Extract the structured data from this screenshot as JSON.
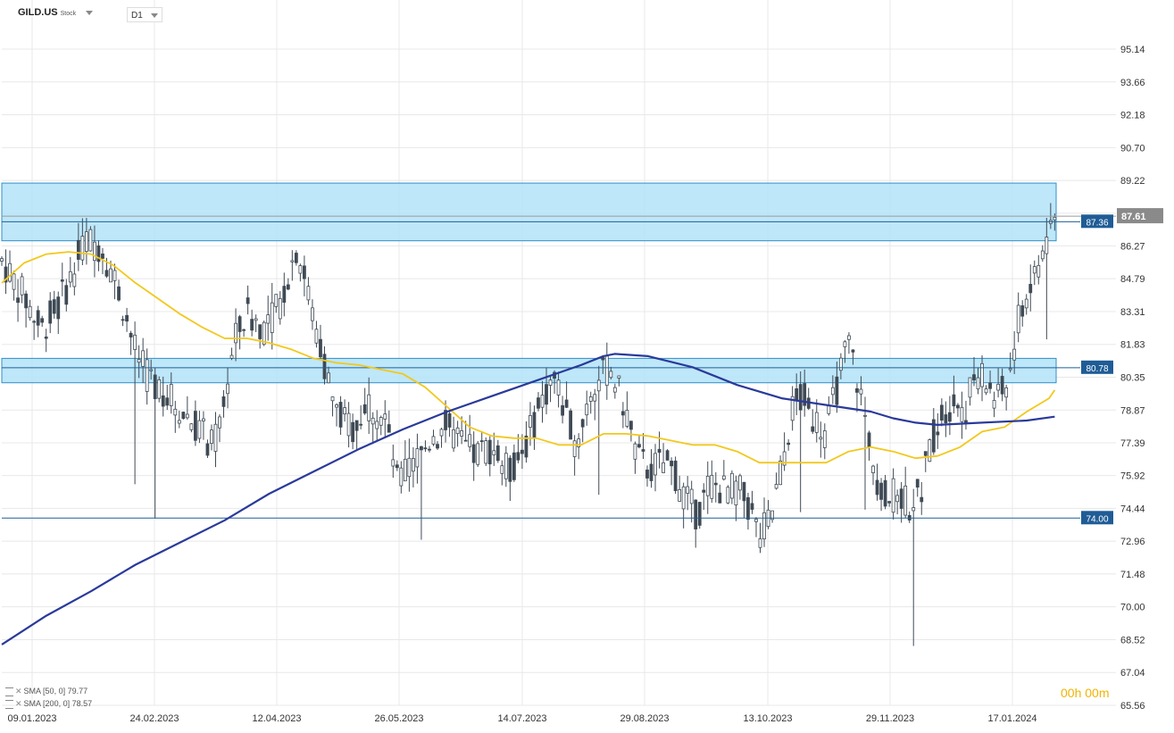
{
  "header": {
    "symbol": "GILD.US",
    "symbol_type": "Stock",
    "timeframe": "D1"
  },
  "legend": [
    {
      "label": "SMA [50, 0] 79.77"
    },
    {
      "label": "SMA [200, 0] 78.57"
    }
  ],
  "timer": "00h 00m",
  "colors": {
    "zone_fill": "#b3e3f8",
    "zone_border": "#2f8fc8",
    "line_blue": "#1e5f97",
    "sma50": "#f2c81c",
    "sma200": "#2a3a9a",
    "candle": "#3f4a55",
    "label_bg": "#1f5c96",
    "price_label_bg": "#8a8a8a"
  },
  "chart_data": {
    "type": "candlestick",
    "y_ticks": [
      "95.14",
      "93.66",
      "92.18",
      "90.70",
      "89.22",
      "87.74",
      "86.27",
      "84.79",
      "83.31",
      "81.83",
      "80.35",
      "78.87",
      "77.39",
      "75.92",
      "74.44",
      "72.96",
      "71.48",
      "70.00",
      "68.52",
      "67.04",
      "65.56"
    ],
    "x_ticks": [
      "09.01.2023",
      "24.02.2023",
      "12.04.2023",
      "26.05.2023",
      "14.07.2023",
      "29.08.2023",
      "13.10.2023",
      "29.11.2023",
      "17.01.2024"
    ],
    "ylim": [
      65.56,
      95.14
    ],
    "zones": [
      {
        "from": 86.5,
        "to": 89.1
      },
      {
        "from": 80.1,
        "to": 81.2
      }
    ],
    "lines": [
      {
        "label": "87.36",
        "value": 87.36
      },
      {
        "label": "80.78",
        "value": 80.78
      },
      {
        "label": "74.00",
        "value": 74.0
      }
    ],
    "last_price": {
      "label": "87.61",
      "value": 87.61
    },
    "series": [
      {
        "name": "SMA [50, 0]",
        "last": 79.77,
        "points": [
          [
            0,
            84.6
          ],
          [
            0.02,
            85.5
          ],
          [
            0.04,
            85.9
          ],
          [
            0.06,
            86.0
          ],
          [
            0.08,
            85.9
          ],
          [
            0.1,
            85.4
          ],
          [
            0.12,
            84.6
          ],
          [
            0.14,
            83.9
          ],
          [
            0.16,
            83.2
          ],
          [
            0.18,
            82.6
          ],
          [
            0.2,
            82.1
          ],
          [
            0.22,
            82.1
          ],
          [
            0.24,
            81.9
          ],
          [
            0.26,
            81.6
          ],
          [
            0.28,
            81.2
          ],
          [
            0.3,
            81.0
          ],
          [
            0.32,
            80.9
          ],
          [
            0.34,
            80.7
          ],
          [
            0.36,
            80.5
          ],
          [
            0.38,
            79.9
          ],
          [
            0.4,
            79.0
          ],
          [
            0.42,
            78.1
          ],
          [
            0.44,
            77.7
          ],
          [
            0.46,
            77.6
          ],
          [
            0.48,
            77.6
          ],
          [
            0.5,
            77.3
          ],
          [
            0.52,
            77.3
          ],
          [
            0.54,
            77.8
          ],
          [
            0.56,
            77.8
          ],
          [
            0.58,
            77.7
          ],
          [
            0.6,
            77.5
          ],
          [
            0.62,
            77.3
          ],
          [
            0.64,
            77.3
          ],
          [
            0.66,
            77.0
          ],
          [
            0.68,
            76.5
          ],
          [
            0.7,
            76.5
          ],
          [
            0.72,
            76.5
          ],
          [
            0.74,
            76.5
          ],
          [
            0.76,
            77.0
          ],
          [
            0.78,
            77.2
          ],
          [
            0.8,
            77.0
          ],
          [
            0.82,
            76.7
          ],
          [
            0.84,
            76.8
          ],
          [
            0.86,
            77.2
          ],
          [
            0.88,
            77.9
          ],
          [
            0.9,
            78.1
          ],
          [
            0.92,
            78.8
          ],
          [
            0.94,
            79.4
          ],
          [
            0.945,
            79.77
          ]
        ]
      },
      {
        "name": "SMA [200, 0]",
        "last": 78.57,
        "points": [
          [
            0,
            68.3
          ],
          [
            0.04,
            69.6
          ],
          [
            0.08,
            70.7
          ],
          [
            0.12,
            71.9
          ],
          [
            0.16,
            72.9
          ],
          [
            0.2,
            73.9
          ],
          [
            0.24,
            75.1
          ],
          [
            0.28,
            76.1
          ],
          [
            0.32,
            77.1
          ],
          [
            0.36,
            78.0
          ],
          [
            0.4,
            78.8
          ],
          [
            0.44,
            79.5
          ],
          [
            0.48,
            80.2
          ],
          [
            0.52,
            80.9
          ],
          [
            0.54,
            81.3
          ],
          [
            0.55,
            81.4
          ],
          [
            0.58,
            81.3
          ],
          [
            0.62,
            80.8
          ],
          [
            0.66,
            80.0
          ],
          [
            0.7,
            79.4
          ],
          [
            0.74,
            79.1
          ],
          [
            0.78,
            78.8
          ],
          [
            0.8,
            78.5
          ],
          [
            0.82,
            78.3
          ],
          [
            0.84,
            78.2
          ],
          [
            0.88,
            78.3
          ],
          [
            0.92,
            78.4
          ],
          [
            0.945,
            78.57
          ]
        ]
      }
    ],
    "candles_path": [
      [
        0,
        85.6
      ],
      [
        0.02,
        84.0
      ],
      [
        0.035,
        82.5
      ],
      [
        0.05,
        83.5
      ],
      [
        0.065,
        85.2
      ],
      [
        0.075,
        86.6
      ],
      [
        0.09,
        86.2
      ],
      [
        0.1,
        85.0
      ],
      [
        0.11,
        83.4
      ],
      [
        0.12,
        81.5
      ],
      [
        0.13,
        80.4
      ],
      [
        0.145,
        79.8
      ],
      [
        0.16,
        78.9
      ],
      [
        0.175,
        78.2
      ],
      [
        0.19,
        77.1
      ],
      [
        0.2,
        79.5
      ],
      [
        0.21,
        82.1
      ],
      [
        0.22,
        83.2
      ],
      [
        0.235,
        82.6
      ],
      [
        0.25,
        83.7
      ],
      [
        0.265,
        86.3
      ],
      [
        0.275,
        84.1
      ],
      [
        0.29,
        80.9
      ],
      [
        0.3,
        78.7
      ],
      [
        0.315,
        78.1
      ],
      [
        0.33,
        79.2
      ],
      [
        0.345,
        78.3
      ],
      [
        0.355,
        75.6
      ],
      [
        0.37,
        76.4
      ],
      [
        0.385,
        77.6
      ],
      [
        0.4,
        78.2
      ],
      [
        0.41,
        77.4
      ],
      [
        0.425,
        76.8
      ],
      [
        0.44,
        77.3
      ],
      [
        0.455,
        76.0
      ],
      [
        0.47,
        77.3
      ],
      [
        0.485,
        79.3
      ],
      [
        0.495,
        80.4
      ],
      [
        0.505,
        78.9
      ],
      [
        0.515,
        77.4
      ],
      [
        0.53,
        79.9
      ],
      [
        0.545,
        80.8
      ],
      [
        0.56,
        78.9
      ],
      [
        0.57,
        76.7
      ],
      [
        0.58,
        76.2
      ],
      [
        0.595,
        76.5
      ],
      [
        0.605,
        75.9
      ],
      [
        0.615,
        74.8
      ],
      [
        0.625,
        74.1
      ],
      [
        0.635,
        75.6
      ],
      [
        0.65,
        75.2
      ],
      [
        0.66,
        75.4
      ],
      [
        0.67,
        74.5
      ],
      [
        0.68,
        73.2
      ],
      [
        0.69,
        74.0
      ],
      [
        0.7,
        76.3
      ],
      [
        0.71,
        79.0
      ],
      [
        0.72,
        79.4
      ],
      [
        0.73,
        78.4
      ],
      [
        0.74,
        77.9
      ],
      [
        0.75,
        80.0
      ],
      [
        0.76,
        81.9
      ],
      [
        0.765,
        80.9
      ],
      [
        0.775,
        78.5
      ],
      [
        0.785,
        75.9
      ],
      [
        0.795,
        74.8
      ],
      [
        0.805,
        75.2
      ],
      [
        0.815,
        74.6
      ],
      [
        0.825,
        75.3
      ],
      [
        0.835,
        77.6
      ],
      [
        0.845,
        78.9
      ],
      [
        0.855,
        79.3
      ],
      [
        0.865,
        79.0
      ],
      [
        0.875,
        80.6
      ],
      [
        0.885,
        80.0
      ],
      [
        0.895,
        79.2
      ],
      [
        0.905,
        80.6
      ],
      [
        0.915,
        83.6
      ],
      [
        0.925,
        84.6
      ],
      [
        0.935,
        86.2
      ],
      [
        0.945,
        87.4
      ]
    ]
  }
}
